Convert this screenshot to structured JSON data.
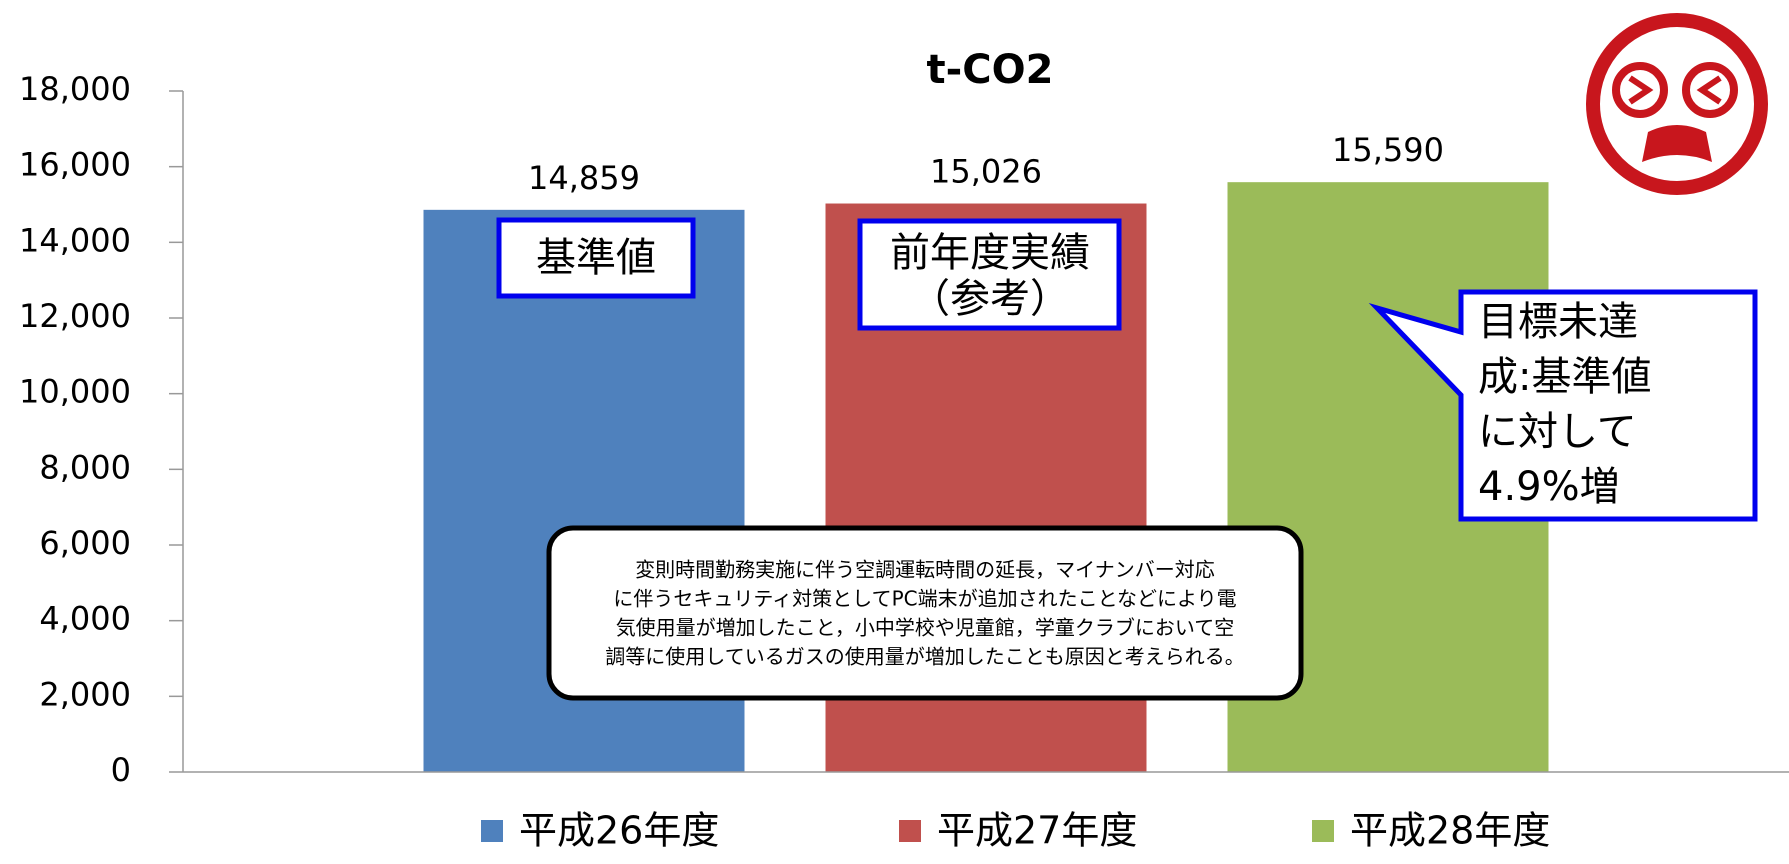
{
  "chart_data": {
    "type": "bar",
    "title": "t-CO2",
    "categories": [
      null
    ],
    "series": [
      {
        "name": "平成26年度",
        "color": "#4f81bd",
        "values": [
          14859
        ],
        "value_labels": [
          "14,859"
        ]
      },
      {
        "name": "平成27年度",
        "color": "#c0504d",
        "values": [
          15026
        ],
        "value_labels": [
          "15,026"
        ]
      },
      {
        "name": "平成28年度",
        "color": "#9bbb59",
        "values": [
          15590
        ],
        "value_labels": [
          "15,590"
        ]
      }
    ],
    "ylim": [
      0,
      18000
    ],
    "yticks": [
      0,
      {
        "value": 2000,
        "label": "2,000"
      },
      {
        "value": 4000,
        "label": "4,000"
      },
      {
        "value": 6000,
        "label": "6,000"
      },
      {
        "value": 8000,
        "label": "8,000"
      },
      {
        "value": 10000,
        "label": "10,000"
      },
      {
        "value": 12000,
        "label": "12,000"
      },
      {
        "value": 14000,
        "label": "14,000"
      },
      {
        "value": 16000,
        "label": "16,000"
      },
      {
        "value": 18000,
        "label": "18,000"
      }
    ],
    "legend": "bottom",
    "annotations": {
      "base_label": "基準値",
      "prev_label": [
        "前年度実績",
        "（参考）"
      ],
      "callout": [
        "目標未達",
        "成:基準値",
        "に対して",
        "4.9%増"
      ],
      "note": [
        "変則時間勤務実施に伴う空調運転時間の延長，マイナンバー対応",
        "に伴うセキュリティ対策としてPC端末が追加されたことなどにより電",
        "気使用量が増加したこと，小中学校や児童館，学童クラブにおいて空",
        "調等に使用しているガスの使用量が増加したことも原因と考えられる。"
      ]
    }
  }
}
